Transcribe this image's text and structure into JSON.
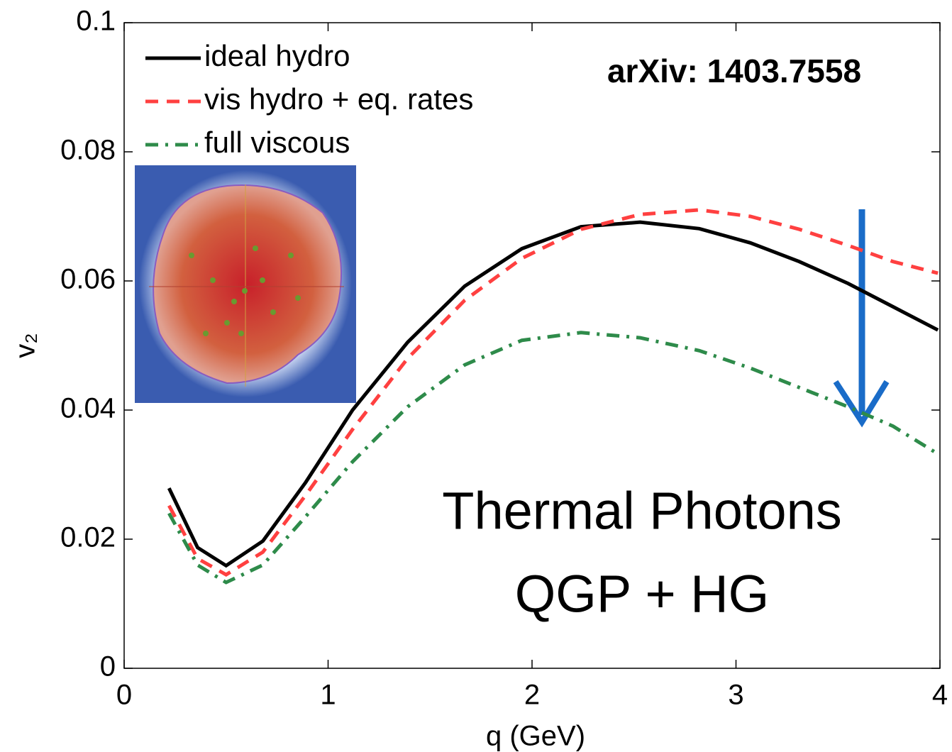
{
  "chart_data": {
    "type": "line",
    "x": [
      0.22,
      0.36,
      0.5,
      0.68,
      0.89,
      1.12,
      1.39,
      1.67,
      1.95,
      2.24,
      2.53,
      2.82,
      3.07,
      3.31,
      3.55,
      3.77,
      3.99
    ],
    "series": [
      {
        "name": "ideal hydro",
        "color": "#000000",
        "dash": "solid",
        "values": [
          0.0279,
          0.0187,
          0.0159,
          0.0197,
          0.0288,
          0.04,
          0.0505,
          0.0592,
          0.065,
          0.0684,
          0.0691,
          0.0681,
          0.0659,
          0.063,
          0.0596,
          0.056,
          0.0524
        ]
      },
      {
        "name": "vis hydro + eq. rates",
        "color": "#ff4040",
        "dash": "dashed",
        "values": [
          0.0252,
          0.017,
          0.0145,
          0.018,
          0.0268,
          0.037,
          0.048,
          0.057,
          0.0635,
          0.068,
          0.0703,
          0.071,
          0.07,
          0.068,
          0.0655,
          0.063,
          0.0612
        ]
      },
      {
        "name": "full viscous",
        "color": "#2e8b4a",
        "dash": "dashdot",
        "values": [
          0.024,
          0.016,
          0.0133,
          0.016,
          0.0235,
          0.032,
          0.0405,
          0.047,
          0.0508,
          0.052,
          0.0512,
          0.0492,
          0.0465,
          0.0435,
          0.0405,
          0.0375,
          0.0332
        ]
      }
    ],
    "xlabel": "q (GeV)",
    "ylabel": "v₂",
    "xlim": [
      0,
      4
    ],
    "ylim": [
      0,
      0.1
    ],
    "xticks": [
      0,
      1,
      2,
      3,
      4
    ],
    "yticks": [
      0,
      0.02,
      0.04,
      0.06,
      0.08,
      0.1
    ],
    "legend": "upper left",
    "annotations": [
      "arXiv: 1403.7558",
      "Thermal Photons",
      "QGP + HG"
    ]
  }
}
